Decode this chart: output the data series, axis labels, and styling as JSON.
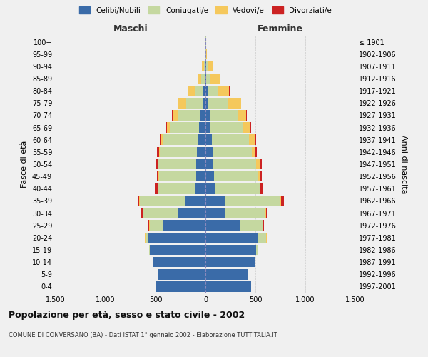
{
  "age_groups": [
    "0-4",
    "5-9",
    "10-14",
    "15-19",
    "20-24",
    "25-29",
    "30-34",
    "35-39",
    "40-44",
    "45-49",
    "50-54",
    "55-59",
    "60-64",
    "65-69",
    "70-74",
    "75-79",
    "80-84",
    "85-89",
    "90-94",
    "95-99",
    "100+"
  ],
  "birth_years": [
    "1997-2001",
    "1992-1996",
    "1987-1991",
    "1982-1986",
    "1977-1981",
    "1972-1976",
    "1967-1971",
    "1962-1966",
    "1957-1961",
    "1952-1956",
    "1947-1951",
    "1942-1946",
    "1937-1941",
    "1932-1936",
    "1927-1931",
    "1922-1926",
    "1917-1921",
    "1912-1916",
    "1907-1911",
    "1902-1906",
    "≤ 1901"
  ],
  "colors": {
    "celibi": "#3a6ba8",
    "coniugati": "#c5d8a0",
    "vedovi": "#f5c85c",
    "divorziati": "#cc2222"
  },
  "maschi": {
    "celibi": [
      490,
      480,
      530,
      560,
      570,
      430,
      280,
      200,
      110,
      95,
      90,
      85,
      80,
      65,
      50,
      30,
      20,
      10,
      5,
      2,
      2
    ],
    "coniugati": [
      0,
      0,
      2,
      5,
      30,
      130,
      350,
      460,
      370,
      370,
      380,
      370,
      340,
      290,
      220,
      160,
      90,
      30,
      8,
      2,
      2
    ],
    "vedovi": [
      0,
      0,
      0,
      0,
      5,
      5,
      2,
      2,
      2,
      3,
      5,
      12,
      20,
      30,
      60,
      80,
      60,
      40,
      20,
      3,
      2
    ],
    "divorziati": [
      0,
      0,
      0,
      0,
      2,
      5,
      10,
      18,
      25,
      18,
      20,
      18,
      15,
      8,
      5,
      3,
      2,
      2,
      0,
      0,
      0
    ]
  },
  "femmine": {
    "celibi": [
      460,
      430,
      490,
      510,
      530,
      340,
      200,
      200,
      100,
      85,
      80,
      75,
      65,
      50,
      40,
      25,
      18,
      10,
      5,
      3,
      2
    ],
    "coniugati": [
      0,
      0,
      2,
      10,
      80,
      230,
      400,
      550,
      440,
      440,
      430,
      390,
      370,
      330,
      280,
      200,
      100,
      40,
      15,
      2,
      2
    ],
    "vedovi": [
      0,
      0,
      0,
      0,
      5,
      5,
      5,
      8,
      10,
      20,
      30,
      35,
      60,
      70,
      90,
      130,
      120,
      100,
      55,
      10,
      5
    ],
    "divorziati": [
      0,
      0,
      0,
      0,
      2,
      8,
      10,
      30,
      18,
      18,
      25,
      12,
      15,
      10,
      5,
      4,
      3,
      2,
      0,
      0,
      0
    ]
  },
  "title": "Popolazione per età, sesso e stato civile - 2002",
  "subtitle": "COMUNE DI CONVERSANO (BA) - Dati ISTAT 1° gennaio 2002 - Elaborazione TUTTITALIA.IT",
  "xlabel_left": "Maschi",
  "xlabel_right": "Femmine",
  "ylabel_left": "Fasce di età",
  "ylabel_right": "Anni di nascita",
  "xlim": 1500,
  "xticks": [
    -1500,
    -1000,
    -500,
    0,
    500,
    1000,
    1500
  ],
  "xticklabels": [
    "1.500",
    "1.000",
    "500",
    "0",
    "500",
    "1.000",
    "1.500"
  ],
  "bg_color": "#f0f0f0",
  "legend_labels": [
    "Celibi/Nubili",
    "Coniugati/e",
    "Vedovi/e",
    "Divorziati/e"
  ]
}
